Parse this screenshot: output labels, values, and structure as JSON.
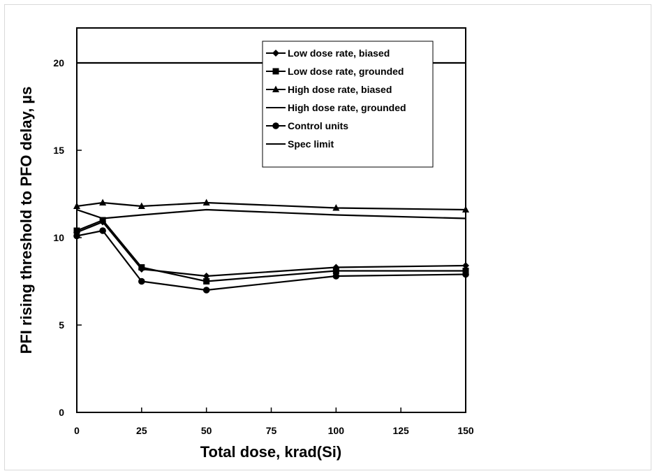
{
  "chart_data": {
    "type": "line",
    "title": "",
    "xlabel": "Total dose, krad(Si)",
    "ylabel": "PFI rising threshold to PFO delay, µs",
    "xlim": [
      0,
      150
    ],
    "ylim": [
      0,
      22
    ],
    "x_ticks": [
      "0",
      "25",
      "50",
      "75",
      "100",
      "125",
      "150"
    ],
    "y_ticks": [
      "0",
      "5",
      "10",
      "15",
      "20"
    ],
    "grid": false,
    "legend_position": "top-right",
    "x": [
      0,
      10,
      25,
      50,
      100,
      150
    ],
    "series": [
      {
        "name": "Low dose rate, biased",
        "marker": "diamond",
        "values": [
          10.3,
          10.9,
          8.2,
          7.8,
          8.3,
          8.4
        ]
      },
      {
        "name": "Low dose rate, grounded",
        "marker": "square",
        "values": [
          10.4,
          11.0,
          8.3,
          7.5,
          8.1,
          8.1
        ]
      },
      {
        "name": "High dose rate, biased",
        "marker": "triangle",
        "values": [
          11.8,
          12.0,
          11.8,
          12.0,
          11.7,
          11.6
        ]
      },
      {
        "name": "High dose rate, grounded",
        "marker": "none",
        "values": [
          11.6,
          11.1,
          11.3,
          11.6,
          11.3,
          11.1
        ]
      },
      {
        "name": "Control units",
        "marker": "circle",
        "values": [
          10.1,
          10.4,
          7.5,
          7.0,
          7.8,
          7.9
        ]
      },
      {
        "name": "Spec limit",
        "marker": "none",
        "x": [
          0,
          150
        ],
        "values": [
          20,
          20
        ]
      }
    ]
  }
}
